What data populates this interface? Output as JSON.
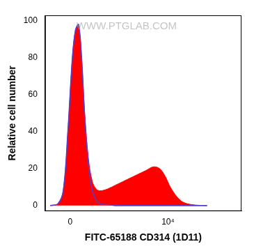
{
  "chart_data": {
    "type": "histogram_overlay",
    "xlabel": "FITC-65188 CD314 (1D11)",
    "ylabel": "Relative cell number",
    "watermark": "WWW.PTGLAB.COM",
    "x": [
      -258,
      -147,
      -80,
      -26,
      26,
      62,
      99,
      137,
      179,
      235,
      298,
      370,
      452,
      658,
      941,
      1337,
      1886,
      2660,
      3740,
      5260,
      6910,
      8770,
      11100,
      14600,
      19100,
      28900,
      56800
    ],
    "series": [
      {
        "color": "#ff0000",
        "values": [
          0,
          1,
          8,
          40,
          80,
          95,
          97,
          80,
          50,
          25,
          13,
          9,
          8,
          9,
          11,
          13,
          15,
          17,
          19,
          21,
          20,
          16,
          10,
          5,
          2,
          0.5,
          0
        ]
      },
      {
        "color": "#5a3cc8",
        "values": [
          0,
          1,
          8,
          40,
          80,
          95,
          98,
          80,
          48,
          22,
          8,
          3,
          1,
          0.5,
          0,
          0,
          0,
          0,
          0,
          0,
          0,
          0,
          0,
          0,
          0,
          0,
          0
        ]
      }
    ],
    "xlim": [
      -350,
      262144
    ],
    "xticks": [
      {
        "value": 0,
        "label": "0"
      },
      {
        "value": 10000,
        "label": "10⁴"
      }
    ],
    "ylim": [
      -3,
      103
    ],
    "yticks": [
      0,
      20,
      40,
      60,
      80,
      100
    ],
    "grid": false
  }
}
